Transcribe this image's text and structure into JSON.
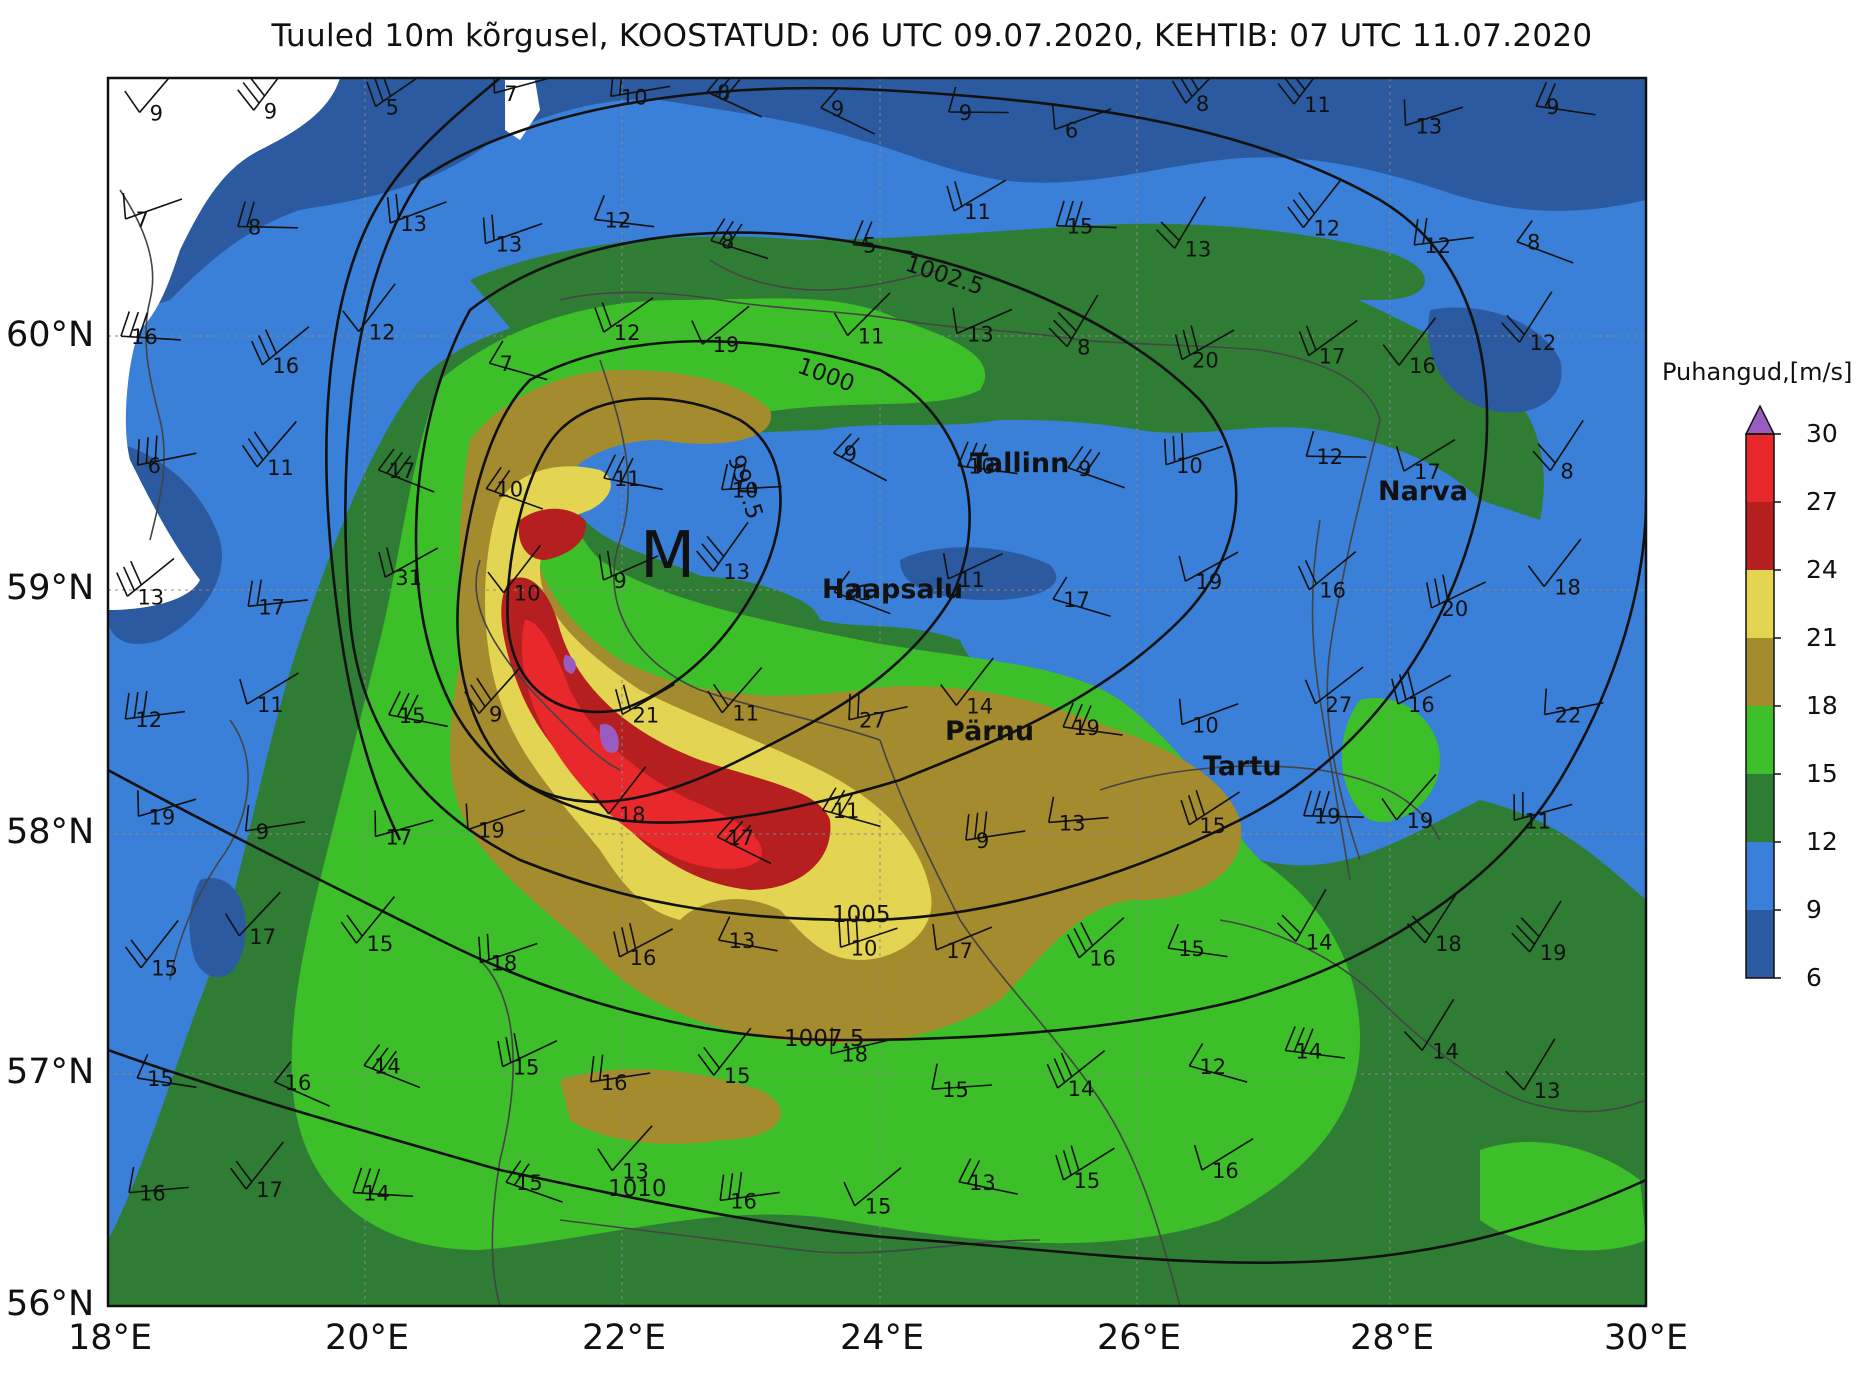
{
  "title": "Tuuled 10m kõrgusel, KOOSTATUD: 06 UTC 09.07.2020, KEHTIB: 07 UTC 11.07.2020",
  "colorbar": {
    "title": "Puhangud,[m/s]",
    "ticks": [
      "6",
      "9",
      "12",
      "15",
      "18",
      "21",
      "24",
      "27",
      "30"
    ],
    "colors": [
      "#2b5aa0",
      "#3a7fd8",
      "#2f7d35",
      "#3dbf2a",
      "#a48b2d",
      "#e3d552",
      "#b51f1f",
      "#e8282a"
    ],
    "extend_color": "#9a5cc0"
  },
  "axes": {
    "lat_labels": [
      "60°N",
      "59°N",
      "58°N",
      "57°N",
      "56°N"
    ],
    "lon_labels": [
      "18°E",
      "20°E",
      "22°E",
      "24°E",
      "26°E",
      "28°E",
      "30°E"
    ]
  },
  "pressure_labels": [
    "1002.5",
    "1000",
    "997.5",
    "1005",
    "1007.5",
    "1010"
  ],
  "low_marker": "M",
  "cities": [
    {
      "name": "Tallinn"
    },
    {
      "name": "Narva"
    },
    {
      "name": "Haapsalu"
    },
    {
      "name": "Pärnu"
    },
    {
      "name": "Tartu"
    }
  ],
  "wind_speed_labels": [
    "9",
    "9",
    "5",
    "7",
    "10",
    "8",
    "9",
    "9",
    "6",
    "8",
    "11",
    "13",
    "9",
    "7",
    "8",
    "13",
    "13",
    "12",
    "8",
    "5",
    "11",
    "15",
    "13",
    "12",
    "12",
    "8",
    "16",
    "16",
    "12",
    "7",
    "12",
    "19",
    "11",
    "13",
    "8",
    "20",
    "17",
    "16",
    "12",
    "6",
    "11",
    "17",
    "10",
    "11",
    "10",
    "9",
    "10",
    "9",
    "10",
    "12",
    "17",
    "8",
    "13",
    "17",
    "31",
    "10",
    "9",
    "13",
    "21",
    "11",
    "17",
    "19",
    "16",
    "20",
    "18",
    "12",
    "11",
    "15",
    "9",
    "21",
    "11",
    "27",
    "14",
    "19",
    "10",
    "27",
    "16",
    "22",
    "19",
    "9",
    "17",
    "19",
    "18",
    "17",
    "11",
    "9",
    "13",
    "15",
    "19",
    "19",
    "11",
    "15",
    "17",
    "15",
    "18",
    "16",
    "13",
    "10",
    "17",
    "16",
    "15",
    "14",
    "18",
    "19",
    "15",
    "16",
    "14",
    "15",
    "16",
    "15",
    "18",
    "15",
    "14",
    "12",
    "14",
    "14",
    "13",
    "16",
    "17",
    "14",
    "15",
    "13",
    "16",
    "15",
    "13",
    "15",
    "16"
  ]
}
